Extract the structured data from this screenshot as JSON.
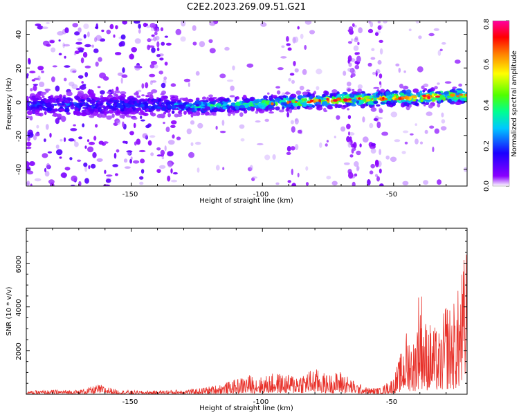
{
  "title": "C2E2.2023.269.09.51.G21",
  "colorbar": {
    "label": "Normalized spectral amplitude",
    "ticks": [
      "0.0",
      "0.2",
      "0.4",
      "0.6",
      "0.8"
    ],
    "range": [
      0,
      0.8
    ]
  },
  "chart_data": [
    {
      "type": "heatmap",
      "xlabel": "Height of straight line (km)",
      "ylabel": "Frequency (Hz)",
      "xlim": [
        -190,
        -22
      ],
      "ylim": [
        -50,
        48
      ],
      "x_ticks": [
        "-150",
        "-100",
        "-50"
      ],
      "y_ticks": [
        "40",
        "20",
        "0",
        "-20",
        "-40"
      ],
      "colormap": "rainbow",
      "ridge": {
        "x": [
          -190,
          -135,
          -130,
          -100,
          -75,
          -50,
          -22
        ],
        "frequency": [
          -2,
          -2,
          -3,
          -1,
          1,
          2,
          4
        ],
        "amplitude": [
          0.2,
          0.2,
          0.3,
          0.4,
          0.6,
          0.6,
          0.6
        ]
      }
    },
    {
      "type": "line",
      "xlabel": "Height of straight line (km)",
      "ylabel": "SNR (10 * v/v)",
      "xlim": [
        -190,
        -22
      ],
      "ylim": [
        0,
        7600
      ],
      "x_ticks": [
        "-150",
        "-100",
        "-50"
      ],
      "y_ticks": [
        "2000",
        "4000",
        "6000"
      ],
      "color": "#e8312a",
      "series": [
        {
          "x": [
            -190,
            -180,
            -170,
            -162,
            -155,
            -145,
            -135,
            -125,
            -115,
            -110,
            -105,
            -100,
            -95,
            -90,
            -85,
            -80,
            -75,
            -70,
            -65,
            -60,
            -55,
            -50,
            -47,
            -45,
            -42,
            -40,
            -38,
            -35,
            -32,
            -30,
            -28,
            -25,
            -23,
            -22
          ],
          "values": [
            150,
            200,
            200,
            450,
            200,
            150,
            200,
            250,
            500,
            700,
            900,
            800,
            1000,
            900,
            1000,
            1200,
            900,
            1100,
            600,
            300,
            300,
            800,
            2000,
            3000,
            2500,
            5600,
            3500,
            3200,
            2800,
            4500,
            4000,
            5000,
            6500,
            7500
          ]
        }
      ]
    }
  ]
}
